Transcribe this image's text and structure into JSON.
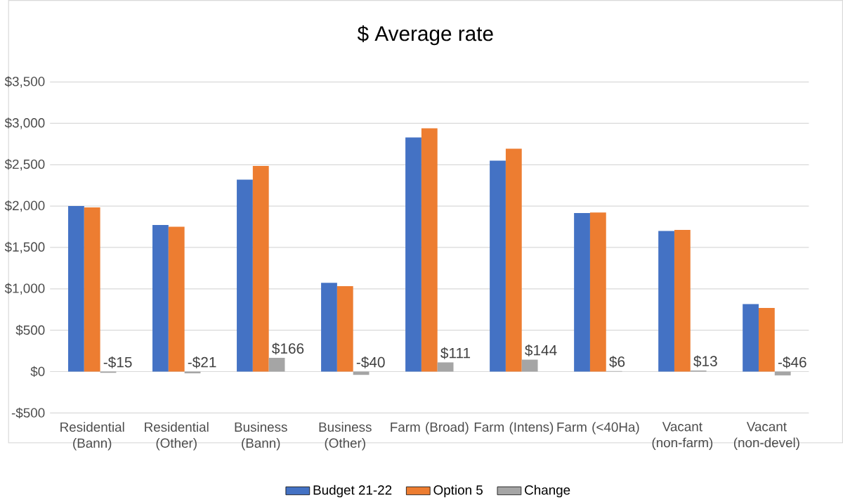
{
  "chart_data": {
    "type": "bar",
    "title": "$ Average rate",
    "categories": [
      "Residential (Bann)",
      "Residential (Other)",
      "Business (Bann)",
      "Business (Other)",
      "Farm (Broad)",
      "Farm (Intens)",
      "Farm (<40Ha)",
      "Vacant (non-farm)",
      "Vacant (non-devel)"
    ],
    "series": [
      {
        "name": "Budget 21-22",
        "color": "#4472c4",
        "values": [
          2000,
          1771,
          2320,
          1072,
          2830,
          2550,
          1916,
          1700,
          816
        ]
      },
      {
        "name": "Option 5",
        "color": "#ed7d31",
        "values": [
          1985,
          1750,
          2486,
          1032,
          2941,
          2694,
          1922,
          1713,
          770
        ]
      },
      {
        "name": "Change",
        "color": "#a5a5a5",
        "values": [
          -15,
          -21,
          166,
          -40,
          111,
          144,
          6,
          13,
          -46
        ],
        "value_labels": [
          "-$15",
          "-$21",
          "$166",
          "-$40",
          "$111",
          "$144",
          "$6",
          "$13",
          "-$46"
        ]
      }
    ],
    "ylim": [
      -500,
      3500
    ],
    "yticks": [
      {
        "value": -500,
        "label": "-$500"
      },
      {
        "value": 0,
        "label": "$0"
      },
      {
        "value": 500,
        "label": "$500"
      },
      {
        "value": 1000,
        "label": "$1,000"
      },
      {
        "value": 1500,
        "label": "$1,500"
      },
      {
        "value": 2000,
        "label": "$2,000"
      },
      {
        "value": 2500,
        "label": "$2,500"
      },
      {
        "value": 3000,
        "label": "$3,000"
      },
      {
        "value": 3500,
        "label": "$3,500"
      }
    ],
    "grid": "y",
    "legend": "bottom"
  }
}
